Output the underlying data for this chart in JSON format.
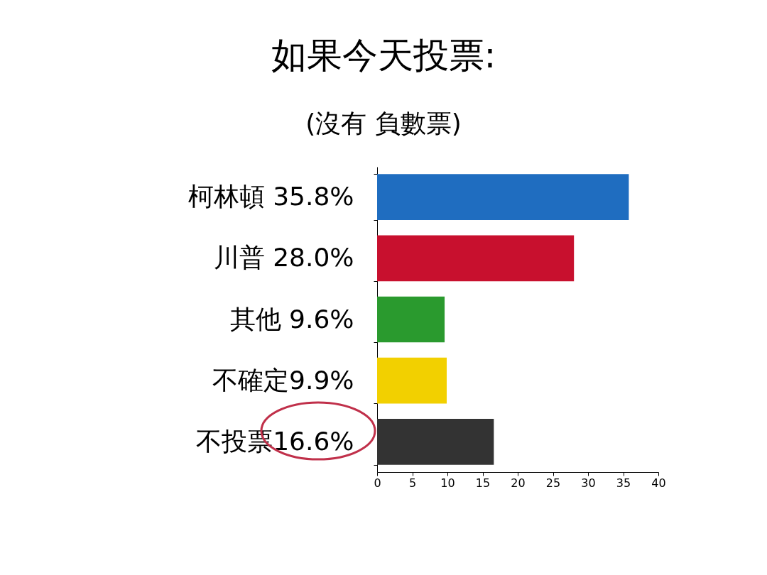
{
  "chart_data": {
    "type": "bar",
    "orientation": "horizontal",
    "title": "如果今天投票:",
    "subtitle": "(沒有 負數票)",
    "categories": [
      "柯林頓 35.8%",
      "川普 28.0%",
      "其他 9.6%",
      "不確定9.9%",
      "不投票16.6%"
    ],
    "values": [
      35.8,
      28.0,
      9.6,
      9.9,
      16.6
    ],
    "colors": [
      "#1f6dc0",
      "#c8102e",
      "#2a9a2e",
      "#f2d000",
      "#333333"
    ],
    "xlim": [
      0,
      40
    ],
    "xticks": [
      0,
      5,
      10,
      15,
      20,
      25,
      30,
      35,
      40
    ],
    "grid": false
  }
}
